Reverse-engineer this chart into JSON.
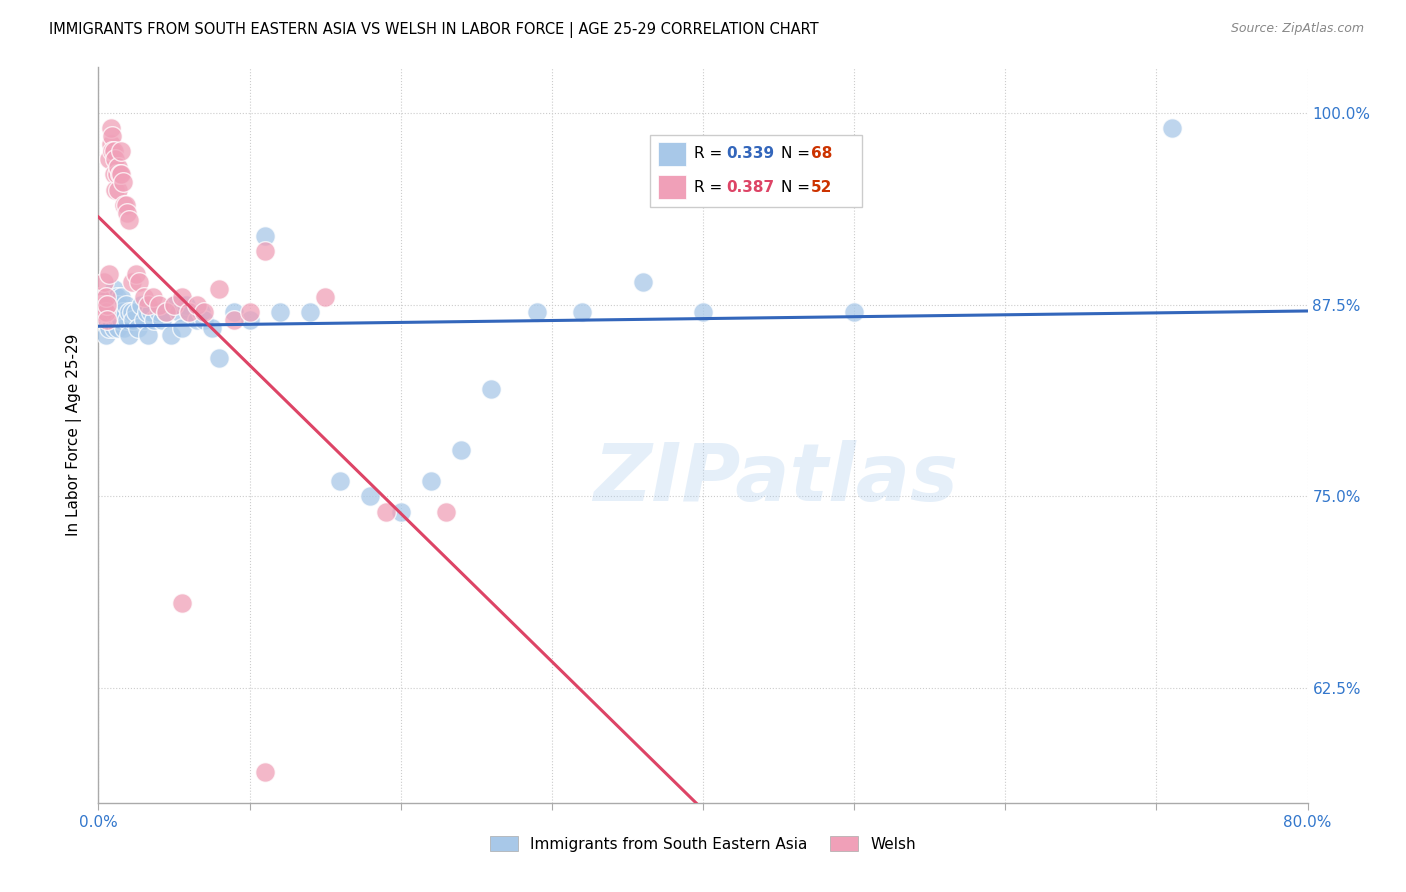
{
  "title": "IMMIGRANTS FROM SOUTH EASTERN ASIA VS WELSH IN LABOR FORCE | AGE 25-29 CORRELATION CHART",
  "source": "Source: ZipAtlas.com",
  "ylabel": "In Labor Force | Age 25-29",
  "xlim": [
    0.0,
    0.8
  ],
  "ylim": [
    0.55,
    1.03
  ],
  "xticks": [
    0.0,
    0.1,
    0.2,
    0.3,
    0.4,
    0.5,
    0.6,
    0.7,
    0.8
  ],
  "xticklabels": [
    "0.0%",
    "",
    "",
    "",
    "",
    "",
    "",
    "",
    "80.0%"
  ],
  "ytick_positions": [
    0.625,
    0.75,
    0.875,
    1.0
  ],
  "ytick_labels": [
    "62.5%",
    "75.0%",
    "87.5%",
    "100.0%"
  ],
  "blue_color": "#a8c8e8",
  "pink_color": "#f0a0b8",
  "blue_line_color": "#3366bb",
  "pink_line_color": "#dd4466",
  "watermark": "ZIPatlas",
  "blue_scatter_x": [
    0.002,
    0.003,
    0.004,
    0.005,
    0.005,
    0.006,
    0.007,
    0.007,
    0.008,
    0.008,
    0.009,
    0.01,
    0.01,
    0.011,
    0.012,
    0.012,
    0.013,
    0.013,
    0.014,
    0.015,
    0.015,
    0.016,
    0.017,
    0.018,
    0.019,
    0.02,
    0.02,
    0.022,
    0.023,
    0.025,
    0.026,
    0.028,
    0.03,
    0.032,
    0.033,
    0.035,
    0.037,
    0.04,
    0.042,
    0.045,
    0.048,
    0.05,
    0.053,
    0.055,
    0.058,
    0.06,
    0.065,
    0.068,
    0.07,
    0.075,
    0.08,
    0.09,
    0.1,
    0.11,
    0.12,
    0.14,
    0.16,
    0.18,
    0.2,
    0.22,
    0.24,
    0.26,
    0.29,
    0.32,
    0.36,
    0.4,
    0.5,
    0.71
  ],
  "blue_scatter_y": [
    0.87,
    0.875,
    0.865,
    0.88,
    0.855,
    0.87,
    0.86,
    0.88,
    0.865,
    0.875,
    0.87,
    0.86,
    0.885,
    0.87,
    0.865,
    0.88,
    0.86,
    0.875,
    0.87,
    0.865,
    0.88,
    0.87,
    0.86,
    0.875,
    0.865,
    0.87,
    0.855,
    0.87,
    0.865,
    0.87,
    0.86,
    0.875,
    0.865,
    0.87,
    0.855,
    0.87,
    0.865,
    0.87,
    0.865,
    0.87,
    0.855,
    0.875,
    0.87,
    0.86,
    0.875,
    0.87,
    0.865,
    0.87,
    0.865,
    0.86,
    0.84,
    0.87,
    0.865,
    0.92,
    0.87,
    0.87,
    0.76,
    0.75,
    0.74,
    0.76,
    0.78,
    0.82,
    0.87,
    0.87,
    0.89,
    0.87,
    0.87,
    0.99
  ],
  "pink_scatter_x": [
    0.001,
    0.002,
    0.003,
    0.004,
    0.004,
    0.005,
    0.005,
    0.006,
    0.006,
    0.007,
    0.007,
    0.008,
    0.008,
    0.009,
    0.009,
    0.01,
    0.01,
    0.011,
    0.011,
    0.012,
    0.013,
    0.013,
    0.014,
    0.015,
    0.015,
    0.016,
    0.017,
    0.018,
    0.019,
    0.02,
    0.022,
    0.025,
    0.027,
    0.03,
    0.033,
    0.036,
    0.04,
    0.045,
    0.05,
    0.055,
    0.06,
    0.065,
    0.07,
    0.08,
    0.09,
    0.1,
    0.11,
    0.15,
    0.19,
    0.23,
    0.055,
    0.11
  ],
  "pink_scatter_y": [
    0.88,
    0.875,
    0.87,
    0.89,
    0.875,
    0.87,
    0.88,
    0.875,
    0.865,
    0.895,
    0.97,
    0.98,
    0.99,
    0.985,
    0.975,
    0.96,
    0.975,
    0.95,
    0.97,
    0.96,
    0.965,
    0.95,
    0.96,
    0.96,
    0.975,
    0.955,
    0.94,
    0.94,
    0.935,
    0.93,
    0.89,
    0.895,
    0.89,
    0.88,
    0.875,
    0.88,
    0.875,
    0.87,
    0.875,
    0.88,
    0.87,
    0.875,
    0.87,
    0.885,
    0.865,
    0.87,
    0.91,
    0.88,
    0.74,
    0.74,
    0.68,
    0.57
  ]
}
